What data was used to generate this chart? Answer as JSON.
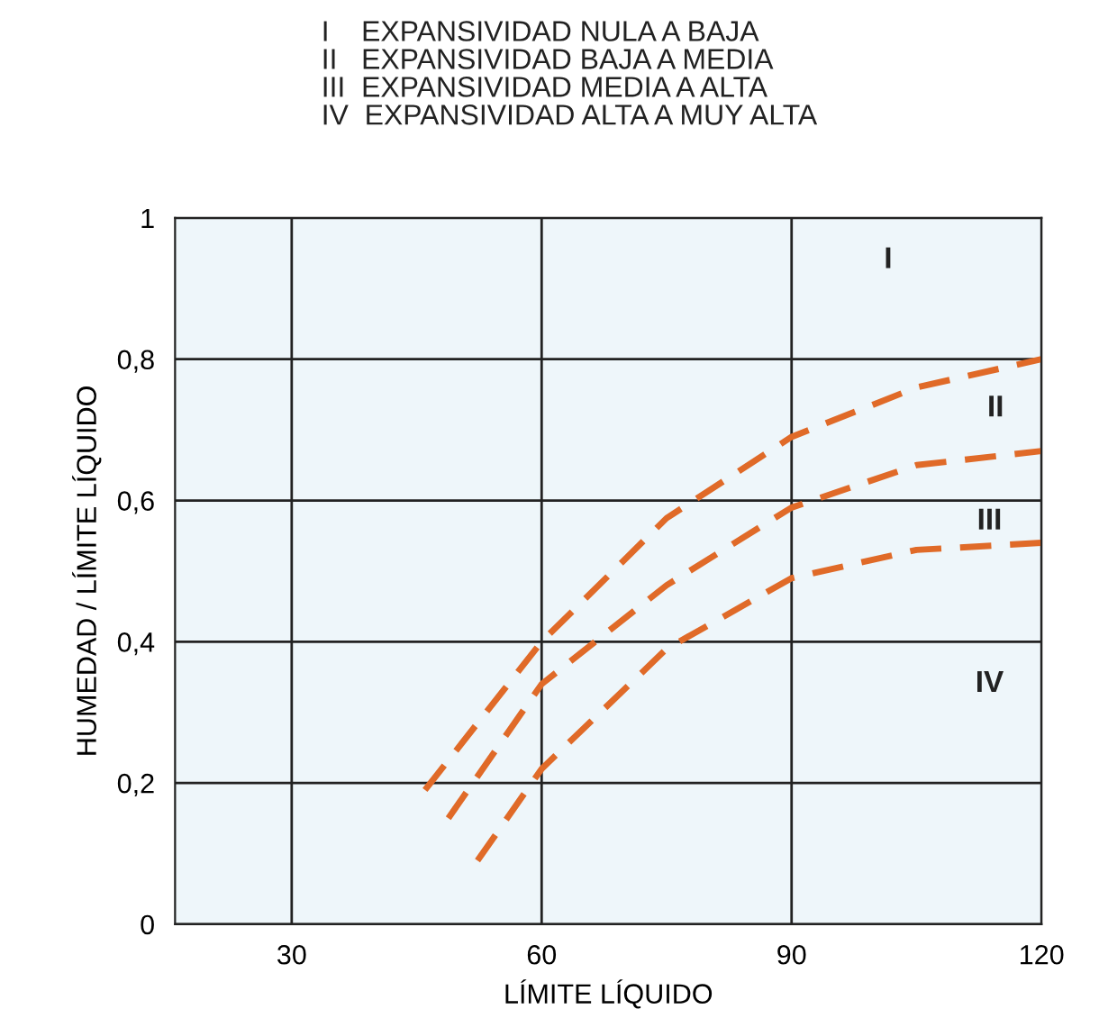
{
  "chart_data": {
    "type": "line",
    "title": "I    EXPANSIVIDAD NULA A BAJA\nII   EXPANSIVIDAD BAJA A MEDIA\nIII  EXPANSIVIDAD MEDIA A ALTA\nIV  EXPANSIVIDAD ALTA A MUY ALTA",
    "xlabel": "LÍMITE LÍQUIDO",
    "ylabel": "HUMEDAD / LÍMITE LÍQUIDO",
    "series": [
      {
        "color": "#e06a28",
        "x": [
          46,
          60,
          75,
          90,
          105,
          120
        ],
        "values": [
          0.19,
          0.4,
          0.575,
          0.69,
          0.76,
          0.8
        ]
      },
      {
        "color": "#e06a28",
        "x": [
          48.8,
          60,
          75,
          90,
          105,
          120
        ],
        "values": [
          0.15,
          0.34,
          0.48,
          0.59,
          0.65,
          0.67
        ]
      },
      {
        "color": "#e06a28",
        "x": [
          52.3,
          60,
          75,
          90,
          105,
          120
        ],
        "values": [
          0.09,
          0.22,
          0.39,
          0.49,
          0.53,
          0.54
        ]
      }
    ],
    "annotations": [
      "I",
      "II",
      "III",
      "IV"
    ],
    "xlim": [
      16,
      120
    ],
    "xticks": [
      30,
      60,
      90,
      120
    ],
    "ylim": [
      0,
      1
    ],
    "yticks": [
      0,
      {
        "value": 0.2,
        "label": "0,2"
      },
      {
        "value": 0.4,
        "label": "0,4"
      },
      {
        "value": 0.6,
        "label": "0,6"
      },
      {
        "value": 0.8,
        "label": "0,8"
      },
      1
    ],
    "grid": true,
    "line_style": "dashed",
    "marker": "none"
  }
}
